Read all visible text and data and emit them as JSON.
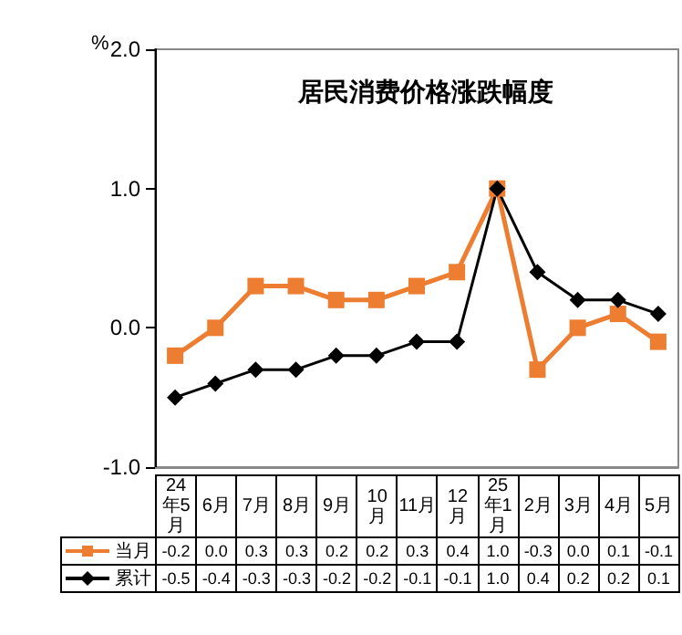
{
  "chart_data": {
    "type": "line",
    "title": "居民消费价格涨跌幅度",
    "ylabel": "%",
    "categories": [
      "24年5月",
      "6月",
      "7月",
      "8月",
      "9月",
      "10月",
      "11月",
      "12月",
      "25年1月",
      "2月",
      "3月",
      "4月",
      "5月"
    ],
    "series": [
      {
        "name": "当月",
        "color": "#ed7d31",
        "marker": "square",
        "values": [
          -0.2,
          0.0,
          0.3,
          0.3,
          0.2,
          0.2,
          0.3,
          0.4,
          1.0,
          -0.3,
          0.0,
          0.1,
          -0.1
        ],
        "value_labels": [
          "-0.2",
          "0.0",
          "0.3",
          "0.3",
          "0.2",
          "0.2",
          "0.3",
          "0.4",
          "1.0",
          "-0.3",
          "0.0",
          "0.1",
          "-0.1"
        ]
      },
      {
        "name": "累计",
        "color": "#000000",
        "marker": "diamond",
        "values": [
          -0.5,
          -0.4,
          -0.3,
          -0.3,
          -0.2,
          -0.2,
          -0.1,
          -0.1,
          1.0,
          0.4,
          0.2,
          0.2,
          0.1
        ],
        "value_labels": [
          "-0.5",
          "-0.4",
          "-0.3",
          "-0.3",
          "-0.2",
          "-0.2",
          "-0.1",
          "-0.1",
          "1.0",
          "0.4",
          "0.2",
          "0.2",
          "0.1"
        ]
      }
    ],
    "ylim": [
      -1,
      2
    ],
    "yticks": [
      {
        "value": -1,
        "label": "-1.0"
      },
      {
        "value": 0,
        "label": "0.0"
      },
      {
        "value": 1,
        "label": "1.0"
      },
      {
        "value": 2,
        "label": "2.0"
      }
    ],
    "grid": false,
    "legend": "bottom",
    "tick_labels": "y",
    "line_style": "solid"
  }
}
